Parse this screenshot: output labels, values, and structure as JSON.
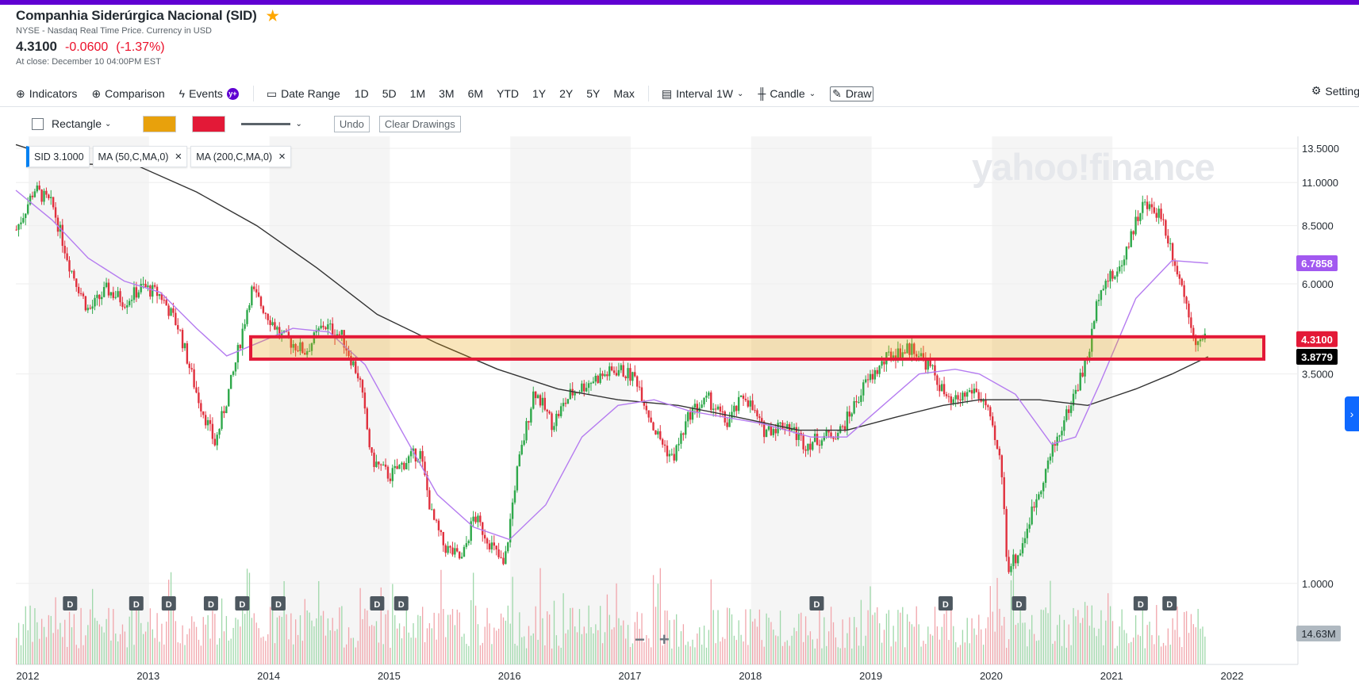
{
  "quote": {
    "name": "Companhia Siderúrgica Nacional (SID)",
    "exchange": "NYSE - Nasdaq Real Time Price. Currency in USD",
    "price": "4.3100",
    "change": "-0.0600",
    "change_pct": "(-1.37%)",
    "close_time": "At close: December 10 04:00PM EST"
  },
  "toolbar": {
    "indicators": "Indicators",
    "comparison": "Comparison",
    "events": "Events",
    "events_badge": "y+",
    "date_range": "Date Range",
    "ranges": [
      "1D",
      "5D",
      "1M",
      "3M",
      "6M",
      "YTD",
      "1Y",
      "2Y",
      "5Y",
      "Max"
    ],
    "interval_label": "Interval",
    "interval_value": "1W",
    "chart_type": "Candle",
    "draw": "Draw",
    "settings": "Settings"
  },
  "drawbar": {
    "shape": "Rectangle",
    "fill_color": "#e8a10c",
    "stroke_color": "#e31937",
    "undo": "Undo",
    "clear": "Clear Drawings"
  },
  "legend": {
    "symbol": "SID 3.1000",
    "ma1": "MA (50,C,MA,0)",
    "ma2": "MA (200,C,MA,0)"
  },
  "watermark": "yahoo!finance",
  "colors": {
    "up": "#2ea84a",
    "down": "#e0303d",
    "ma50": "#b57cf0",
    "ma200": "#333333",
    "brand": "#6001d2",
    "badge_ma50": "#a259f0",
    "badge_price": "#e31937",
    "badge_ma200": "#000000",
    "badge_vol": "#b0b9c1"
  },
  "icons": {
    "indicators": "plus-circle-icon",
    "comparison": "plus-circle-icon",
    "events": "lightning-icon",
    "date_range": "calendar-icon",
    "interval": "ruler-icon",
    "candle": "candlestick-icon",
    "draw": "pencil-icon",
    "settings": "gear-icon"
  },
  "zoom": {
    "minus": "−",
    "plus": "+"
  },
  "chart_data": {
    "type": "candlestick",
    "interval": "1W",
    "y_scale": "log",
    "x_ticks": [
      "2012",
      "2013",
      "2014",
      "2015",
      "2016",
      "2017",
      "2018",
      "2019",
      "2020",
      "2021",
      "2022"
    ],
    "y_ticks": [
      "13.5000",
      "11.0000",
      "8.5000",
      "6.0000",
      "3.5000",
      "1.0000"
    ],
    "last_price_label": "4.3100",
    "ma50_label": "6.7858",
    "ma200_label": "3.8779",
    "volume_label": "14.63M",
    "dividend_marker": "D",
    "dividends": [
      2012.45,
      2013.0,
      2013.27,
      2013.62,
      2013.88,
      2014.18,
      2015.0,
      2015.2,
      2018.65,
      2019.72,
      2020.33,
      2021.34,
      2021.58
    ],
    "close_series": [
      [
        2012.0,
        8.3
      ],
      [
        2012.15,
        10.6
      ],
      [
        2012.3,
        9.6
      ],
      [
        2012.45,
        6.6
      ],
      [
        2012.6,
        5.1
      ],
      [
        2012.75,
        5.8
      ],
      [
        2012.9,
        5.4
      ],
      [
        2013.05,
        5.9
      ],
      [
        2013.2,
        5.6
      ],
      [
        2013.35,
        4.6
      ],
      [
        2013.5,
        3.1
      ],
      [
        2013.65,
        2.3
      ],
      [
        2013.8,
        3.5
      ],
      [
        2013.95,
        5.8
      ],
      [
        2014.05,
        5.2
      ],
      [
        2014.2,
        4.4
      ],
      [
        2014.4,
        4.0
      ],
      [
        2014.55,
        4.7
      ],
      [
        2014.7,
        4.4
      ],
      [
        2014.85,
        3.4
      ],
      [
        2014.95,
        2.1
      ],
      [
        2015.1,
        1.9
      ],
      [
        2015.25,
        2.1
      ],
      [
        2015.35,
        2.2
      ],
      [
        2015.45,
        1.5
      ],
      [
        2015.55,
        1.25
      ],
      [
        2015.7,
        1.15
      ],
      [
        2015.8,
        1.5
      ],
      [
        2015.95,
        1.25
      ],
      [
        2016.05,
        1.1
      ],
      [
        2016.15,
        1.9
      ],
      [
        2016.3,
        3.2
      ],
      [
        2016.45,
        2.6
      ],
      [
        2016.6,
        3.1
      ],
      [
        2016.8,
        3.4
      ],
      [
        2017.0,
        3.6
      ],
      [
        2017.15,
        3.4
      ],
      [
        2017.3,
        2.5
      ],
      [
        2017.45,
        2.1
      ],
      [
        2017.6,
        2.8
      ],
      [
        2017.75,
        3.0
      ],
      [
        2017.9,
        2.6
      ],
      [
        2018.05,
        3.1
      ],
      [
        2018.2,
        2.5
      ],
      [
        2018.4,
        2.6
      ],
      [
        2018.55,
        2.3
      ],
      [
        2018.7,
        2.4
      ],
      [
        2018.85,
        2.5
      ],
      [
        2019.05,
        3.3
      ],
      [
        2019.25,
        3.9
      ],
      [
        2019.45,
        4.1
      ],
      [
        2019.6,
        3.6
      ],
      [
        2019.75,
        2.9
      ],
      [
        2019.95,
        3.2
      ],
      [
        2020.05,
        2.9
      ],
      [
        2020.18,
        2.0
      ],
      [
        2020.23,
        1.1
      ],
      [
        2020.33,
        1.2
      ],
      [
        2020.45,
        1.6
      ],
      [
        2020.6,
        2.2
      ],
      [
        2020.75,
        2.9
      ],
      [
        2020.9,
        3.9
      ],
      [
        2021.0,
        6.0
      ],
      [
        2021.15,
        6.4
      ],
      [
        2021.25,
        8.0
      ],
      [
        2021.35,
        9.6
      ],
      [
        2021.5,
        9.2
      ],
      [
        2021.6,
        7.2
      ],
      [
        2021.7,
        5.6
      ],
      [
        2021.8,
        4.2
      ],
      [
        2021.9,
        4.31
      ]
    ],
    "ma50_series": [
      [
        2012.0,
        10.5
      ],
      [
        2012.3,
        8.8
      ],
      [
        2012.6,
        7.0
      ],
      [
        2012.9,
        6.1
      ],
      [
        2013.2,
        5.7
      ],
      [
        2013.5,
        4.6
      ],
      [
        2013.75,
        3.9
      ],
      [
        2014.0,
        4.2
      ],
      [
        2014.3,
        4.6
      ],
      [
        2014.6,
        4.5
      ],
      [
        2014.9,
        3.7
      ],
      [
        2015.2,
        2.5
      ],
      [
        2015.5,
        1.7
      ],
      [
        2015.8,
        1.4
      ],
      [
        2016.1,
        1.3
      ],
      [
        2016.4,
        1.6
      ],
      [
        2016.7,
        2.4
      ],
      [
        2017.0,
        2.9
      ],
      [
        2017.3,
        3.0
      ],
      [
        2017.6,
        2.8
      ],
      [
        2017.9,
        2.7
      ],
      [
        2018.2,
        2.6
      ],
      [
        2018.6,
        2.4
      ],
      [
        2018.9,
        2.4
      ],
      [
        2019.2,
        2.9
      ],
      [
        2019.5,
        3.5
      ],
      [
        2019.8,
        3.6
      ],
      [
        2020.0,
        3.5
      ],
      [
        2020.3,
        3.1
      ],
      [
        2020.6,
        2.3
      ],
      [
        2020.8,
        2.4
      ],
      [
        2021.0,
        3.3
      ],
      [
        2021.3,
        5.5
      ],
      [
        2021.6,
        6.9
      ],
      [
        2021.9,
        6.79
      ]
    ],
    "ma200_series": [
      [
        2012.0,
        13.8
      ],
      [
        2012.5,
        12.3
      ],
      [
        2013.0,
        12.2
      ],
      [
        2013.5,
        10.4
      ],
      [
        2014.0,
        8.5
      ],
      [
        2014.5,
        6.6
      ],
      [
        2015.0,
        5.0
      ],
      [
        2015.5,
        4.2
      ],
      [
        2016.0,
        3.6
      ],
      [
        2016.5,
        3.2
      ],
      [
        2017.0,
        3.0
      ],
      [
        2017.5,
        2.9
      ],
      [
        2018.0,
        2.7
      ],
      [
        2018.5,
        2.5
      ],
      [
        2018.9,
        2.5
      ],
      [
        2019.3,
        2.7
      ],
      [
        2019.7,
        2.9
      ],
      [
        2020.0,
        3.0
      ],
      [
        2020.5,
        3.0
      ],
      [
        2020.9,
        2.9
      ],
      [
        2021.3,
        3.2
      ],
      [
        2021.6,
        3.5
      ],
      [
        2021.9,
        3.88
      ]
    ],
    "drawn_rectangle": {
      "x_from": 2013.95,
      "x_to": 2022.0,
      "y_from": 3.88,
      "y_to": 4.31
    }
  }
}
